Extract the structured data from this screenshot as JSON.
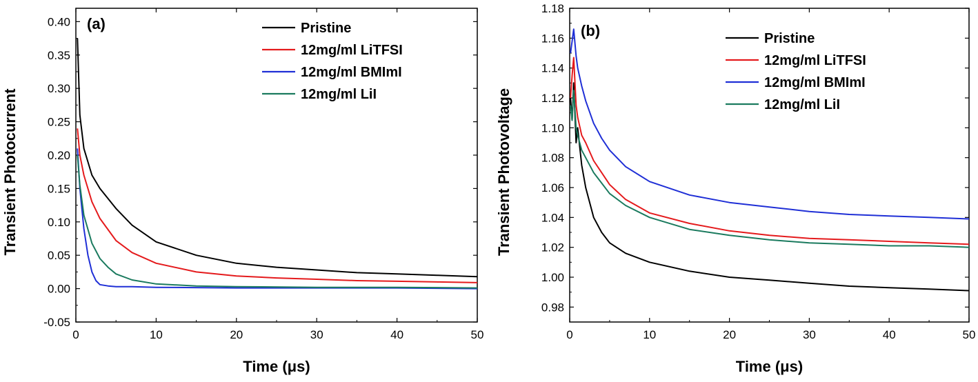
{
  "chart_data": [
    {
      "type": "line",
      "panel_label": "(a)",
      "xlabel": "Time (μs)",
      "ylabel": "Transient Photocurrent",
      "xlim": [
        0,
        50
      ],
      "ylim": [
        -0.05,
        0.42
      ],
      "xticks": [
        0,
        10,
        20,
        30,
        40,
        50
      ],
      "yticks": [
        -0.05,
        0.0,
        0.05,
        0.1,
        0.15,
        0.2,
        0.25,
        0.3,
        0.35,
        0.4
      ],
      "ytick_labels": [
        "-0.05",
        "0.00",
        "0.05",
        "0.10",
        "0.15",
        "0.20",
        "0.25",
        "0.30",
        "0.35",
        "0.40"
      ],
      "grid": false,
      "legend_position": "top-right",
      "series": [
        {
          "name": "Pristine",
          "color": "#000000",
          "x": [
            0.2,
            0.5,
            1,
            2,
            3,
            5,
            7,
            10,
            15,
            20,
            25,
            30,
            35,
            40,
            45,
            50
          ],
          "y": [
            0.375,
            0.26,
            0.21,
            0.17,
            0.15,
            0.12,
            0.095,
            0.07,
            0.05,
            0.038,
            0.032,
            0.028,
            0.024,
            0.022,
            0.02,
            0.018
          ]
        },
        {
          "name": "12mg/ml LiTFSI",
          "color": "#e41a1c",
          "x": [
            0.2,
            0.5,
            1,
            2,
            3,
            5,
            7,
            10,
            15,
            20,
            25,
            30,
            35,
            40,
            45,
            50
          ],
          "y": [
            0.24,
            0.2,
            0.17,
            0.13,
            0.105,
            0.072,
            0.054,
            0.038,
            0.025,
            0.019,
            0.016,
            0.014,
            0.012,
            0.011,
            0.01,
            0.009
          ]
        },
        {
          "name": "12mg/ml BMImI",
          "color": "#1f2fd6",
          "x": [
            0.2,
            0.5,
            1,
            1.5,
            2,
            2.5,
            3,
            4,
            5,
            7,
            10,
            20,
            30,
            40,
            50
          ],
          "y": [
            0.21,
            0.15,
            0.09,
            0.05,
            0.025,
            0.012,
            0.006,
            0.004,
            0.003,
            0.003,
            0.002,
            0.001,
            0.001,
            0.001,
            0.0
          ]
        },
        {
          "name": "12mg/ml LiI",
          "color": "#1a7a5e",
          "x": [
            0.2,
            0.5,
            1,
            2,
            3,
            4,
            5,
            7,
            10,
            15,
            20,
            30,
            40,
            50
          ],
          "y": [
            0.2,
            0.155,
            0.11,
            0.068,
            0.045,
            0.032,
            0.022,
            0.013,
            0.007,
            0.004,
            0.003,
            0.002,
            0.002,
            0.001
          ]
        }
      ]
    },
    {
      "type": "line",
      "panel_label": "(b)",
      "xlabel": "Time (μs)",
      "ylabel": "Transient Photovoltage",
      "xlim": [
        0,
        50
      ],
      "ylim": [
        0.97,
        1.18
      ],
      "xticks": [
        0,
        10,
        20,
        30,
        40,
        50
      ],
      "yticks": [
        0.98,
        1.0,
        1.02,
        1.04,
        1.06,
        1.08,
        1.1,
        1.12,
        1.14,
        1.16,
        1.18
      ],
      "ytick_labels": [
        "0.98",
        "1.00",
        "1.02",
        "1.04",
        "1.06",
        "1.08",
        "1.10",
        "1.12",
        "1.14",
        "1.16",
        "1.18"
      ],
      "grid": false,
      "legend_position": "top-right",
      "series": [
        {
          "name": "Pristine",
          "color": "#000000",
          "x": [
            0.1,
            0.3,
            0.5,
            0.8,
            1,
            1.5,
            2,
            3,
            4,
            5,
            7,
            10,
            15,
            20,
            25,
            30,
            35,
            40,
            45,
            50
          ],
          "y": [
            1.12,
            1.105,
            1.13,
            1.09,
            1.1,
            1.075,
            1.06,
            1.04,
            1.03,
            1.023,
            1.016,
            1.01,
            1.004,
            1.0,
            0.998,
            0.996,
            0.994,
            0.993,
            0.992,
            0.991
          ]
        },
        {
          "name": "12mg/ml LiTFSI",
          "color": "#e41a1c",
          "x": [
            0.1,
            0.3,
            0.5,
            0.8,
            1,
            1.5,
            2,
            3,
            4,
            5,
            7,
            10,
            15,
            20,
            25,
            30,
            35,
            40,
            45,
            50
          ],
          "y": [
            1.12,
            1.135,
            1.147,
            1.115,
            1.107,
            1.095,
            1.09,
            1.078,
            1.07,
            1.062,
            1.052,
            1.043,
            1.036,
            1.031,
            1.028,
            1.026,
            1.025,
            1.024,
            1.023,
            1.022
          ]
        },
        {
          "name": "12mg/ml BMImI",
          "color": "#1f2fd6",
          "x": [
            0.1,
            0.3,
            0.5,
            0.8,
            1,
            1.5,
            2,
            3,
            4,
            5,
            7,
            10,
            15,
            20,
            25,
            30,
            35,
            40,
            45,
            50
          ],
          "y": [
            1.15,
            1.158,
            1.166,
            1.148,
            1.14,
            1.128,
            1.118,
            1.103,
            1.093,
            1.085,
            1.074,
            1.064,
            1.055,
            1.05,
            1.047,
            1.044,
            1.042,
            1.041,
            1.04,
            1.039
          ]
        },
        {
          "name": "12mg/ml LiI",
          "color": "#1a7a5e",
          "x": [
            0.1,
            0.3,
            0.5,
            0.8,
            1,
            1.5,
            2,
            3,
            4,
            5,
            7,
            10,
            15,
            20,
            25,
            30,
            35,
            40,
            45,
            50
          ],
          "y": [
            1.115,
            1.105,
            1.125,
            1.1,
            1.095,
            1.085,
            1.08,
            1.07,
            1.063,
            1.056,
            1.048,
            1.04,
            1.032,
            1.028,
            1.025,
            1.023,
            1.022,
            1.021,
            1.021,
            1.02
          ]
        }
      ]
    }
  ]
}
